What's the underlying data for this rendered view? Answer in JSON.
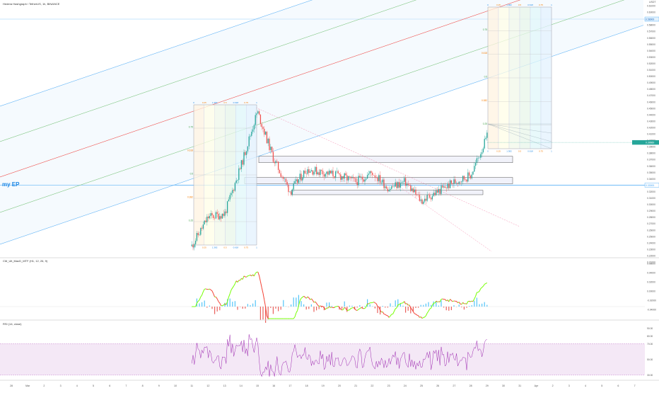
{
  "chart_title": "Hedera Hashgraph / TetherUS, 1h, BINANCE",
  "price_unit": "USDT",
  "ep_label": "my EP",
  "colors": {
    "background": "#ffffff",
    "up": "#26a69a",
    "down": "#ef5350",
    "channel_blue": "#64b5f6",
    "channel_green": "#81c784",
    "channel_red": "#ef5350",
    "ep_line": "#42a5f5",
    "rsi_line": "#9c27b0",
    "rsi_band": "#f3e5f5",
    "sr_box": "#e8eaf6",
    "macd_up": "#76ff03",
    "macd_down": "#f44336",
    "hist_pos": "#29b6f6",
    "hist_neg": "#e53935"
  },
  "price_axis": {
    "labels": [
      "0.61000",
      "0.60000",
      "0.59000",
      "0.58000",
      "0.57000",
      "0.56000",
      "0.55000",
      "0.54000",
      "0.53000",
      "0.52000",
      "0.51000",
      "0.50000",
      "0.49000",
      "0.48000",
      "0.47000",
      "0.46000",
      "0.45000",
      "0.44000",
      "0.43000",
      "0.42000",
      "0.41000",
      "0.40000",
      "0.39000",
      "0.38000",
      "0.37000",
      "0.36000",
      "0.35000",
      "0.34000",
      "0.33000",
      "0.32000",
      "0.31000",
      "0.30000",
      "0.29000",
      "0.28000",
      "0.27000",
      "0.26000",
      "0.25000",
      "0.24000",
      "0.23000",
      "0.22000",
      "0.21000"
    ],
    "last_price_badge": "0.39660",
    "ep_badge": "0.33000",
    "top_level_badge": "0.58900"
  },
  "time_axis": {
    "labels": [
      "28",
      "Mar",
      "2",
      "3",
      "4",
      "5",
      "6",
      "7",
      "8",
      "9",
      "10",
      "11",
      "12",
      "13",
      "14",
      "15",
      "16",
      "17",
      "18",
      "19",
      "20",
      "21",
      "22",
      "23",
      "24",
      "25",
      "26",
      "27",
      "28",
      "29",
      "30",
      "31",
      "Apr",
      "2",
      "3",
      "4",
      "5",
      "6",
      "7"
    ]
  },
  "fib_labels": {
    "top_row": [
      "0",
      "0.25",
      "1.382",
      "0.5",
      "0.618",
      "0.75",
      "1"
    ],
    "side_levels": [
      "0.75",
      "0.618",
      "0.5",
      "0.382",
      "0.25"
    ]
  },
  "macd": {
    "label": "CM_Ult_MacD_MTF (H1, 12, 26, 9)",
    "axis_labels": [
      "0.06000",
      "0.04000",
      "0.02000",
      "0.00000",
      "-0.02000",
      "-0.04000"
    ]
  },
  "rsi": {
    "label": "RSI (14, close)",
    "axis_labels": [
      "90.00",
      "80.00",
      "70.00",
      "50.00",
      "30.00"
    ]
  },
  "chart_data": {
    "type": "candlestick",
    "title": "Hedera Hashgraph / TetherUS, 1h, BINANCE",
    "y_unit": "USDT",
    "ylim": [
      0.21,
      0.61
    ],
    "price_path_keypoints": [
      {
        "date": "2021-03-11",
        "close": 0.235
      },
      {
        "date": "2021-03-12",
        "close": 0.28
      },
      {
        "date": "2021-03-13",
        "close": 0.285
      },
      {
        "date": "2021-03-14",
        "close": 0.36
      },
      {
        "date": "2021-03-15",
        "close": 0.445
      },
      {
        "date": "2021-03-16",
        "close": 0.37
      },
      {
        "date": "2021-03-17",
        "close": 0.32
      },
      {
        "date": "2021-03-18",
        "close": 0.355
      },
      {
        "date": "2021-03-20",
        "close": 0.345
      },
      {
        "date": "2021-03-21",
        "close": 0.335
      },
      {
        "date": "2021-03-22",
        "close": 0.35
      },
      {
        "date": "2021-03-23",
        "close": 0.325
      },
      {
        "date": "2021-03-24",
        "close": 0.335
      },
      {
        "date": "2021-03-25",
        "close": 0.305
      },
      {
        "date": "2021-03-26",
        "close": 0.32
      },
      {
        "date": "2021-03-27",
        "close": 0.335
      },
      {
        "date": "2021-03-28",
        "close": 0.345
      },
      {
        "date": "2021-03-29",
        "close": 0.405
      }
    ],
    "entry_price": 0.33,
    "last_price": 0.3966,
    "support_resistance_zones": [
      [
        0.365,
        0.375
      ],
      [
        0.332,
        0.342
      ],
      [
        0.315,
        0.322
      ]
    ],
    "rsi_levels": {
      "upper": 70,
      "lower": 30
    },
    "grid": false,
    "legend": "top-left"
  }
}
